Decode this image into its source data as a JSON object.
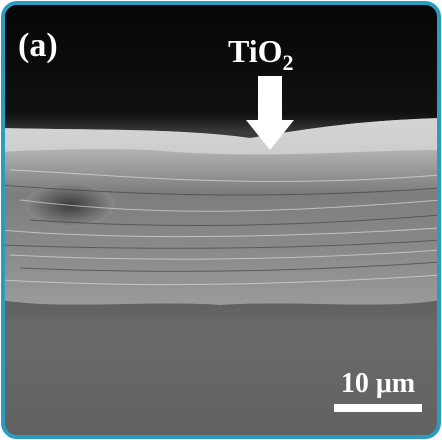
{
  "panel_label": "(a)",
  "arrow_label": {
    "text": "TiO",
    "subscript": "2"
  },
  "scale_bar": {
    "label": "10 μm"
  }
}
